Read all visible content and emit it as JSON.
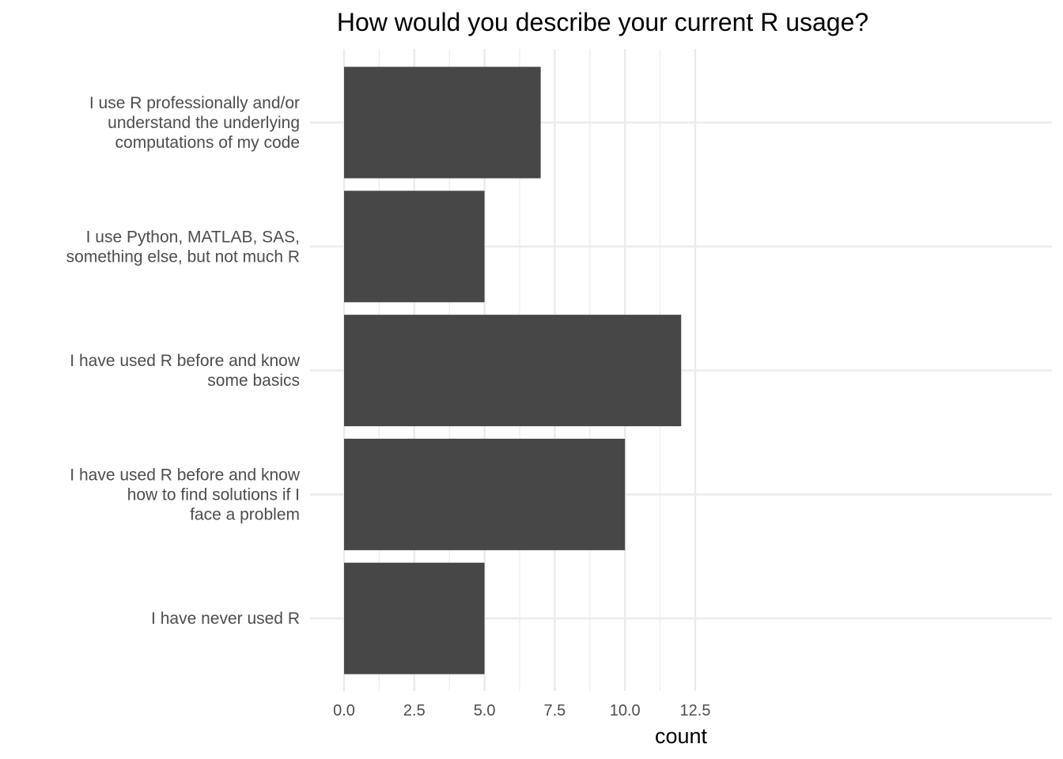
{
  "chart_data": {
    "type": "bar",
    "orientation": "horizontal",
    "title": "How would you describe your current R usage?",
    "xlabel": "count",
    "ylabel": "",
    "categories": [
      [
        "I use R professionally and/or",
        "understand the underlying",
        "computations of my code"
      ],
      [
        "I use Python, MATLAB, SAS,",
        "something else, but not much R"
      ],
      [
        "I have used R before and know",
        "some basics"
      ],
      [
        "I have used R before and know",
        "how to find solutions if I",
        "face a problem"
      ],
      [
        "I have never used R"
      ]
    ],
    "values": [
      7,
      5,
      12,
      10,
      5
    ],
    "xlim": [
      0,
      12.5
    ],
    "x_ticks": [
      "0.0",
      "2.5",
      "5.0",
      "7.5",
      "10.0",
      "12.5"
    ],
    "grid": true,
    "legend": "none",
    "colors": {
      "bar": "#474747",
      "grid": "#ebebeb",
      "text": "#4d4d4d"
    }
  }
}
